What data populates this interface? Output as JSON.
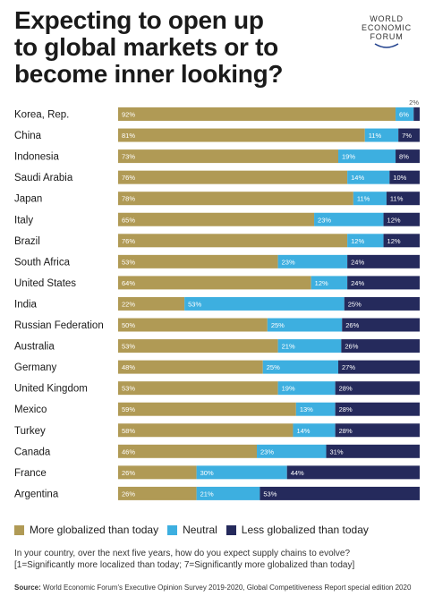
{
  "header": {
    "title_line1": "Expecting to open up",
    "title_line2": "to global markets or to",
    "title_line3": "become inner looking?"
  },
  "logo": {
    "line1": "WORLD",
    "line2": "ECONOMIC",
    "line3": "FORUM"
  },
  "footer": {
    "question_line1": "In your country, over the next five years, how do you expect supply chains to evolve?",
    "question_line2": "[1=Significantly more localized than today; 7=Significantly more globalized than today]",
    "source_label": "Source:",
    "source_text": "World Economic Forum's Executive Opinion Survey 2019-2020, Global Competitiveness Report special edition 2020"
  },
  "colors": {
    "more": "#b09a55",
    "neutral": "#3dafe0",
    "less": "#252a5c"
  },
  "chart_data": {
    "type": "bar",
    "orientation": "horizontal",
    "stacked": true,
    "categories": [
      "Korea, Rep.",
      "China",
      "Indonesia",
      "Saudi Arabia",
      "Japan",
      "Italy",
      "Brazil",
      "South Africa",
      "United States",
      "India",
      "Russian Federation",
      "Australia",
      "Germany",
      "United Kingdom",
      "Mexico",
      "Turkey",
      "Canada",
      "France",
      "Argentina"
    ],
    "series": [
      {
        "name": "More globalized than today",
        "values": [
          92,
          81,
          73,
          76,
          78,
          65,
          76,
          53,
          64,
          22,
          50,
          53,
          48,
          53,
          59,
          58,
          46,
          26,
          26
        ]
      },
      {
        "name": "Neutral",
        "values": [
          6,
          11,
          19,
          14,
          11,
          23,
          12,
          23,
          12,
          53,
          25,
          21,
          25,
          19,
          13,
          14,
          23,
          30,
          21
        ]
      },
      {
        "name": "Less globalized than today",
        "values": [
          2,
          7,
          8,
          10,
          11,
          12,
          12,
          24,
          24,
          25,
          26,
          26,
          27,
          28,
          28,
          28,
          31,
          44,
          53
        ]
      }
    ],
    "value_suffix": "%",
    "legend_position": "bottom",
    "grid": false
  }
}
